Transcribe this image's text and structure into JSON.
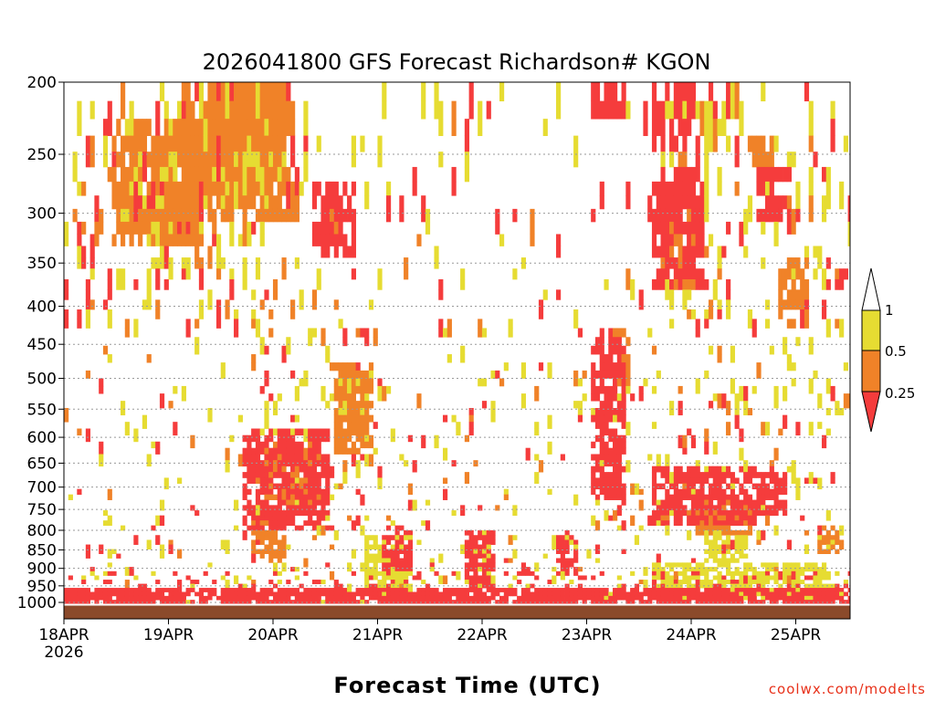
{
  "chart_data": {
    "type": "heatmap",
    "title": "2026041800 GFS Forecast Richardson# KGON",
    "xlabel": "Forecast Time (UTC)",
    "ylabel": "",
    "x_tick_labels": [
      "18APR",
      "19APR",
      "20APR",
      "21APR",
      "22APR",
      "23APR",
      "24APR",
      "25APR"
    ],
    "x_first_tick_sublabel": "2026",
    "x_range_days": [
      0,
      7.5
    ],
    "y_tick_labels": [
      "200",
      "250",
      "300",
      "350",
      "400",
      "450",
      "500",
      "550",
      "600",
      "650",
      "700",
      "750",
      "800",
      "850",
      "900",
      "950",
      "1000"
    ],
    "y_axis": "pressure (hPa), log scale, inverted",
    "y_range": [
      200,
      1000
    ],
    "grid": "dotted horizontal at each pressure level",
    "legend": {
      "placement": "right",
      "labels": [
        "1",
        "0.5",
        "0.25"
      ],
      "bins": [
        {
          "range": "0.5-1",
          "color": "#e6dc32"
        },
        {
          "range": "0.25-0.5",
          "color": "#f08228"
        },
        {
          "range": "<0.25",
          "color": "#f53c3c"
        }
      ]
    },
    "colors": {
      "low": "#f53c3c",
      "mid": "#f08228",
      "high": "#e6dc32",
      "ground": "#8b4a2b"
    },
    "regions": [
      {
        "d0": 0.45,
        "d1": 1.3,
        "p0": 215,
        "p1": 330,
        "cat": 2
      },
      {
        "d0": 0.5,
        "d1": 1.1,
        "p0": 245,
        "p1": 315,
        "cat": 3
      },
      {
        "d0": 1.1,
        "d1": 2.2,
        "p0": 200,
        "p1": 300,
        "cat": 2
      },
      {
        "d0": 1.3,
        "d1": 2.1,
        "p0": 205,
        "p1": 290,
        "cat": 3
      },
      {
        "d0": 1.5,
        "d1": 2.05,
        "p0": 205,
        "p1": 250,
        "cat": 3
      },
      {
        "d0": 2.35,
        "d1": 2.75,
        "p0": 270,
        "p1": 340,
        "cat": 1
      },
      {
        "d0": 2.4,
        "d1": 2.65,
        "p0": 285,
        "p1": 320,
        "cat": 2
      },
      {
        "d0": 2.55,
        "d1": 2.95,
        "p0": 470,
        "p1": 620,
        "cat": 2
      },
      {
        "d0": 2.6,
        "d1": 2.9,
        "p0": 480,
        "p1": 560,
        "cat": 3
      },
      {
        "d0": 1.7,
        "d1": 2.5,
        "p0": 580,
        "p1": 790,
        "cat": 1
      },
      {
        "d0": 1.9,
        "d1": 2.45,
        "p0": 600,
        "p1": 760,
        "cat": 2
      },
      {
        "d0": 2.0,
        "d1": 2.35,
        "p0": 620,
        "p1": 720,
        "cat": 3
      },
      {
        "d0": 1.75,
        "d1": 2.1,
        "p0": 760,
        "p1": 880,
        "cat": 2
      },
      {
        "d0": 3.0,
        "d1": 3.3,
        "p0": 780,
        "p1": 900,
        "cat": 1
      },
      {
        "d0": 2.85,
        "d1": 3.3,
        "p0": 810,
        "p1": 960,
        "cat": 3
      },
      {
        "d0": 3.8,
        "d1": 4.1,
        "p0": 790,
        "p1": 950,
        "cat": 1
      },
      {
        "d0": 3.9,
        "d1": 4.05,
        "p0": 820,
        "p1": 960,
        "cat": 3
      },
      {
        "d0": 4.7,
        "d1": 4.9,
        "p0": 800,
        "p1": 900,
        "cat": 1
      },
      {
        "d0": 5.0,
        "d1": 5.35,
        "p0": 420,
        "p1": 720,
        "cat": 1
      },
      {
        "d0": 5.2,
        "d1": 5.4,
        "p0": 420,
        "p1": 500,
        "cat": 2
      },
      {
        "d0": 5.0,
        "d1": 5.35,
        "p0": 200,
        "p1": 220,
        "cat": 1
      },
      {
        "d0": 5.6,
        "d1": 6.0,
        "p0": 200,
        "p1": 240,
        "cat": 1
      },
      {
        "d0": 5.7,
        "d1": 6.3,
        "p0": 205,
        "p1": 225,
        "cat": 3
      },
      {
        "d0": 5.6,
        "d1": 6.1,
        "p0": 250,
        "p1": 370,
        "cat": 1
      },
      {
        "d0": 5.7,
        "d1": 6.0,
        "p0": 280,
        "p1": 370,
        "cat": 2
      },
      {
        "d0": 5.6,
        "d1": 6.6,
        "p0": 650,
        "p1": 780,
        "cat": 1
      },
      {
        "d0": 6.0,
        "d1": 6.6,
        "p0": 720,
        "p1": 800,
        "cat": 2
      },
      {
        "d0": 6.5,
        "d1": 6.8,
        "p0": 230,
        "p1": 250,
        "cat": 2
      },
      {
        "d0": 6.6,
        "d1": 6.9,
        "p0": 260,
        "p1": 300,
        "cat": 1
      },
      {
        "d0": 6.8,
        "d1": 7.1,
        "p0": 340,
        "p1": 420,
        "cat": 2
      },
      {
        "d0": 6.6,
        "d1": 6.9,
        "p0": 660,
        "p1": 760,
        "cat": 1
      },
      {
        "d0": 7.2,
        "d1": 7.45,
        "p0": 780,
        "p1": 850,
        "cat": 2
      },
      {
        "d0": 5.6,
        "d1": 7.3,
        "p0": 880,
        "p1": 980,
        "cat": 3
      },
      {
        "d0": 6.1,
        "d1": 6.5,
        "p0": 800,
        "p1": 880,
        "cat": 3
      }
    ]
  }
}
